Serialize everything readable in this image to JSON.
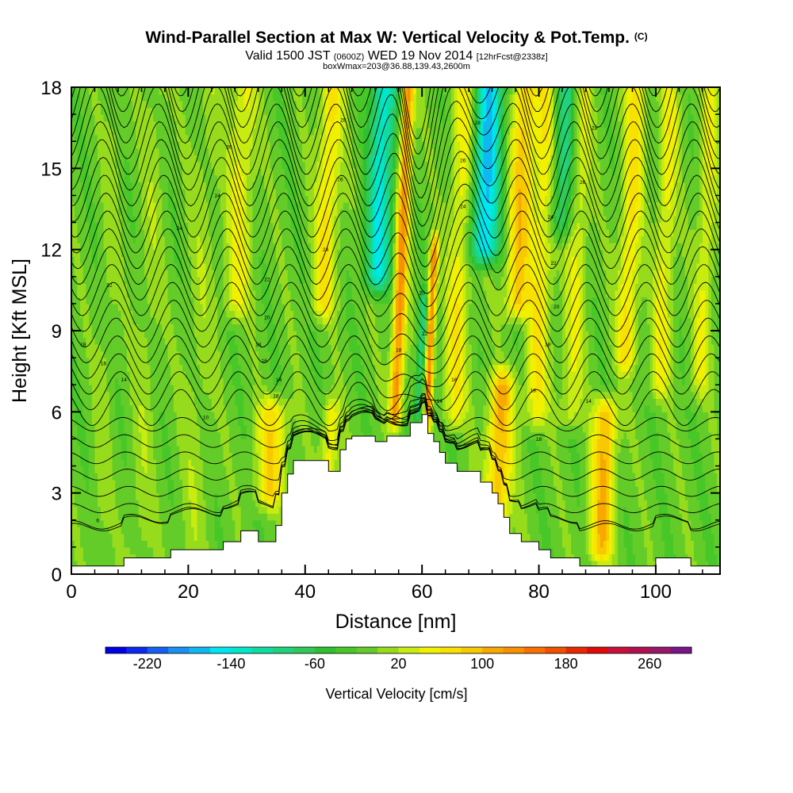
{
  "header": {
    "title": "Wind-Parallel Section at Max W: Vertical Velocity & Pot.Temp.",
    "copyright": "(C)",
    "valid_prefix": "Valid 1500 JST ",
    "valid_utc": "(0600Z)",
    "valid_date": " WED 19 Nov 2014 ",
    "forecast": "[12hrFcst@2338z]",
    "box_info": "boxWmax=203@36.88,139.43,2600m"
  },
  "chart_data": {
    "type": "heatmap",
    "xlabel": "Distance [nm]",
    "ylabel": "Height [Kft MSL]",
    "xlim": [
      0,
      111
    ],
    "ylim": [
      0,
      18
    ],
    "x_ticks": [
      0,
      20,
      40,
      60,
      80,
      100
    ],
    "y_ticks": [
      0,
      3,
      6,
      9,
      12,
      15,
      18
    ],
    "colorbar": {
      "label": "Vertical Velocity [cm/s]",
      "tick_labels": [
        "-220",
        "-140",
        "-60",
        "20",
        "100",
        "180",
        "260"
      ],
      "levels": [
        -260,
        -240,
        -220,
        -200,
        -180,
        -160,
        -140,
        -120,
        -100,
        -80,
        -60,
        -40,
        -20,
        0,
        20,
        40,
        60,
        80,
        100,
        120,
        140,
        160,
        180,
        200,
        220,
        240,
        260,
        280,
        300
      ],
      "colors": [
        "#0000e6",
        "#0a2af0",
        "#1560f0",
        "#1a90f0",
        "#10b8f0",
        "#00e6f0",
        "#00e6c8",
        "#10dca0",
        "#20d27a",
        "#30c858",
        "#2ec030",
        "#48c828",
        "#64cc28",
        "#96dc1c",
        "#c8ec10",
        "#f0f000",
        "#f8e000",
        "#f8c800",
        "#f8a800",
        "#f89000",
        "#f87000",
        "#f05000",
        "#e82800",
        "#e00a0a",
        "#c8103c",
        "#b01050",
        "#981868",
        "#7a1488"
      ]
    },
    "contour_field": "Potential temperature",
    "contour_labels": [
      {
        "text": "6",
        "x": 4.5,
        "y": 2.0
      },
      {
        "text": "10",
        "x": 23,
        "y": 5.8
      },
      {
        "text": "14",
        "x": 9,
        "y": 7.2
      },
      {
        "text": "16",
        "x": 5.5,
        "y": 7.8
      },
      {
        "text": "18",
        "x": 2,
        "y": 8.5
      },
      {
        "text": "18",
        "x": 32,
        "y": 8.5
      },
      {
        "text": "20",
        "x": 33.5,
        "y": 9.5
      },
      {
        "text": "22",
        "x": 6.5,
        "y": 10.7
      },
      {
        "text": "22",
        "x": 33.5,
        "y": 10.9
      },
      {
        "text": "24",
        "x": 18.5,
        "y": 12.8
      },
      {
        "text": "24",
        "x": 25,
        "y": 14.0
      },
      {
        "text": "26",
        "x": 27,
        "y": 15.8
      },
      {
        "text": "14",
        "x": 35.5,
        "y": 7.2
      },
      {
        "text": "16",
        "x": 33,
        "y": 7.9
      },
      {
        "text": "18",
        "x": 35,
        "y": 6.6
      },
      {
        "text": "24",
        "x": 43.5,
        "y": 12.0
      },
      {
        "text": "26",
        "x": 46,
        "y": 14.6
      },
      {
        "text": "28",
        "x": 46.5,
        "y": 16.8
      },
      {
        "text": "18",
        "x": 56,
        "y": 8.3
      },
      {
        "text": "20",
        "x": 60,
        "y": 10.4
      },
      {
        "text": "22",
        "x": 60.5,
        "y": 8.9
      },
      {
        "text": "14",
        "x": 63,
        "y": 6.4
      },
      {
        "text": "16",
        "x": 65.5,
        "y": 7.2
      },
      {
        "text": "24",
        "x": 67,
        "y": 13.6
      },
      {
        "text": "26",
        "x": 67,
        "y": 15.3
      },
      {
        "text": "28",
        "x": 69.5,
        "y": 16.7
      },
      {
        "text": "18",
        "x": 79,
        "y": 6.8
      },
      {
        "text": "18",
        "x": 80,
        "y": 5.0
      },
      {
        "text": "18",
        "x": 81.5,
        "y": 8.5
      },
      {
        "text": "20",
        "x": 83,
        "y": 9.9
      },
      {
        "text": "22",
        "x": 82.5,
        "y": 11.5
      },
      {
        "text": "24",
        "x": 82,
        "y": 13.2
      },
      {
        "text": "14",
        "x": 88.5,
        "y": 6.4
      },
      {
        "text": "26",
        "x": 87.5,
        "y": 14.5
      },
      {
        "text": "28",
        "x": 89.5,
        "y": 16.5
      }
    ],
    "terrain_profile": [
      [
        0,
        0.3
      ],
      [
        9,
        0.3
      ],
      [
        9,
        0.6
      ],
      [
        17,
        0.6
      ],
      [
        17,
        0.9
      ],
      [
        26,
        0.9
      ],
      [
        26,
        1.2
      ],
      [
        29,
        1.2
      ],
      [
        29,
        1.6
      ],
      [
        32,
        1.6
      ],
      [
        32,
        1.2
      ],
      [
        35,
        1.2
      ],
      [
        35,
        1.8
      ],
      [
        36,
        1.8
      ],
      [
        36,
        3.0
      ],
      [
        37,
        3.0
      ],
      [
        37,
        3.7
      ],
      [
        38,
        3.7
      ],
      [
        38,
        4.2
      ],
      [
        44,
        4.2
      ],
      [
        44,
        3.8
      ],
      [
        46,
        3.8
      ],
      [
        46,
        4.6
      ],
      [
        47,
        4.6
      ],
      [
        47,
        5.0
      ],
      [
        48,
        5.0
      ],
      [
        48,
        5.1
      ],
      [
        52,
        5.1
      ],
      [
        52,
        4.9
      ],
      [
        54,
        4.9
      ],
      [
        54,
        5.1
      ],
      [
        58,
        5.1
      ],
      [
        58,
        5.6
      ],
      [
        60,
        5.6
      ],
      [
        60,
        5.9
      ],
      [
        61,
        5.9
      ],
      [
        61,
        5.2
      ],
      [
        62,
        5.2
      ],
      [
        62,
        4.9
      ],
      [
        63,
        4.9
      ],
      [
        63,
        4.5
      ],
      [
        64,
        4.5
      ],
      [
        64,
        4.1
      ],
      [
        66,
        4.1
      ],
      [
        66,
        3.8
      ],
      [
        70,
        3.8
      ],
      [
        70,
        3.4
      ],
      [
        72,
        3.4
      ],
      [
        72,
        3.0
      ],
      [
        73,
        3.0
      ],
      [
        73,
        2.6
      ],
      [
        74,
        2.6
      ],
      [
        74,
        2.1
      ],
      [
        75,
        2.1
      ],
      [
        75,
        1.5
      ],
      [
        77,
        1.5
      ],
      [
        77,
        1.2
      ],
      [
        80,
        1.2
      ],
      [
        80,
        0.9
      ],
      [
        82,
        0.9
      ],
      [
        82,
        0.6
      ],
      [
        87,
        0.6
      ],
      [
        87,
        0.3
      ],
      [
        100,
        0.3
      ],
      [
        100,
        0.6
      ],
      [
        106,
        0.6
      ],
      [
        106,
        0.3
      ],
      [
        111,
        0.3
      ]
    ],
    "updraft_bands": [
      {
        "x": 6,
        "y0": 0,
        "y1": 18,
        "w": 1.5,
        "amp": 0.2
      },
      {
        "x": 13,
        "y0": 0,
        "y1": 18,
        "w": 2,
        "amp": 0.25
      },
      {
        "x": 22,
        "y0": 0,
        "y1": 18,
        "w": 2.5,
        "amp": 0.25
      },
      {
        "x": 28,
        "y0": 10,
        "y1": 18,
        "w": 2.2,
        "amp": 0.7
      },
      {
        "x": 35,
        "y0": 3,
        "y1": 6,
        "w": 2.5,
        "amp": 1.0
      },
      {
        "x": 43,
        "y0": 10,
        "y1": 18,
        "w": 2,
        "amp": 0.9
      },
      {
        "x": 45,
        "y0": 3,
        "y1": 6,
        "w": 1.5,
        "amp": 0.8
      },
      {
        "x": 56,
        "y0": 6,
        "y1": 18,
        "w": 1.1,
        "amp": 1.7
      },
      {
        "x": 61.5,
        "y0": 6,
        "y1": 12,
        "w": 0.7,
        "amp": 1.8
      },
      {
        "x": 66,
        "y0": 6,
        "y1": 18,
        "w": 2,
        "amp": 0.8
      },
      {
        "x": 74,
        "y0": 2,
        "y1": 7,
        "w": 2.2,
        "amp": 1.3
      },
      {
        "x": 76,
        "y0": 10,
        "y1": 18,
        "w": 2,
        "amp": 1.2
      },
      {
        "x": 80,
        "y0": 6,
        "y1": 18,
        "w": 2,
        "amp": 0.8
      },
      {
        "x": 86,
        "y0": 6,
        "y1": 18,
        "w": 1.8,
        "amp": 0.6
      },
      {
        "x": 92,
        "y0": 1,
        "y1": 6,
        "w": 2,
        "amp": 1.3
      },
      {
        "x": 95,
        "y0": 8,
        "y1": 18,
        "w": 1.8,
        "amp": 0.9
      },
      {
        "x": 101,
        "y0": 7,
        "y1": 18,
        "w": 1.6,
        "amp": 0.7
      },
      {
        "x": 108,
        "y0": 7,
        "y1": 18,
        "w": 1.6,
        "amp": 0.6
      }
    ],
    "downdraft_bands": [
      {
        "x": 52,
        "y0": 11,
        "y1": 18,
        "w": 2.2,
        "amp": 1.5
      },
      {
        "x": 70,
        "y0": 12,
        "y1": 18,
        "w": 2.5,
        "amp": 1.8
      },
      {
        "x": 83,
        "y0": 13,
        "y1": 18,
        "w": 2,
        "amp": 1.0
      },
      {
        "x": 60,
        "y0": 6,
        "y1": 10,
        "w": 0.8,
        "amp": 1.0
      }
    ]
  }
}
